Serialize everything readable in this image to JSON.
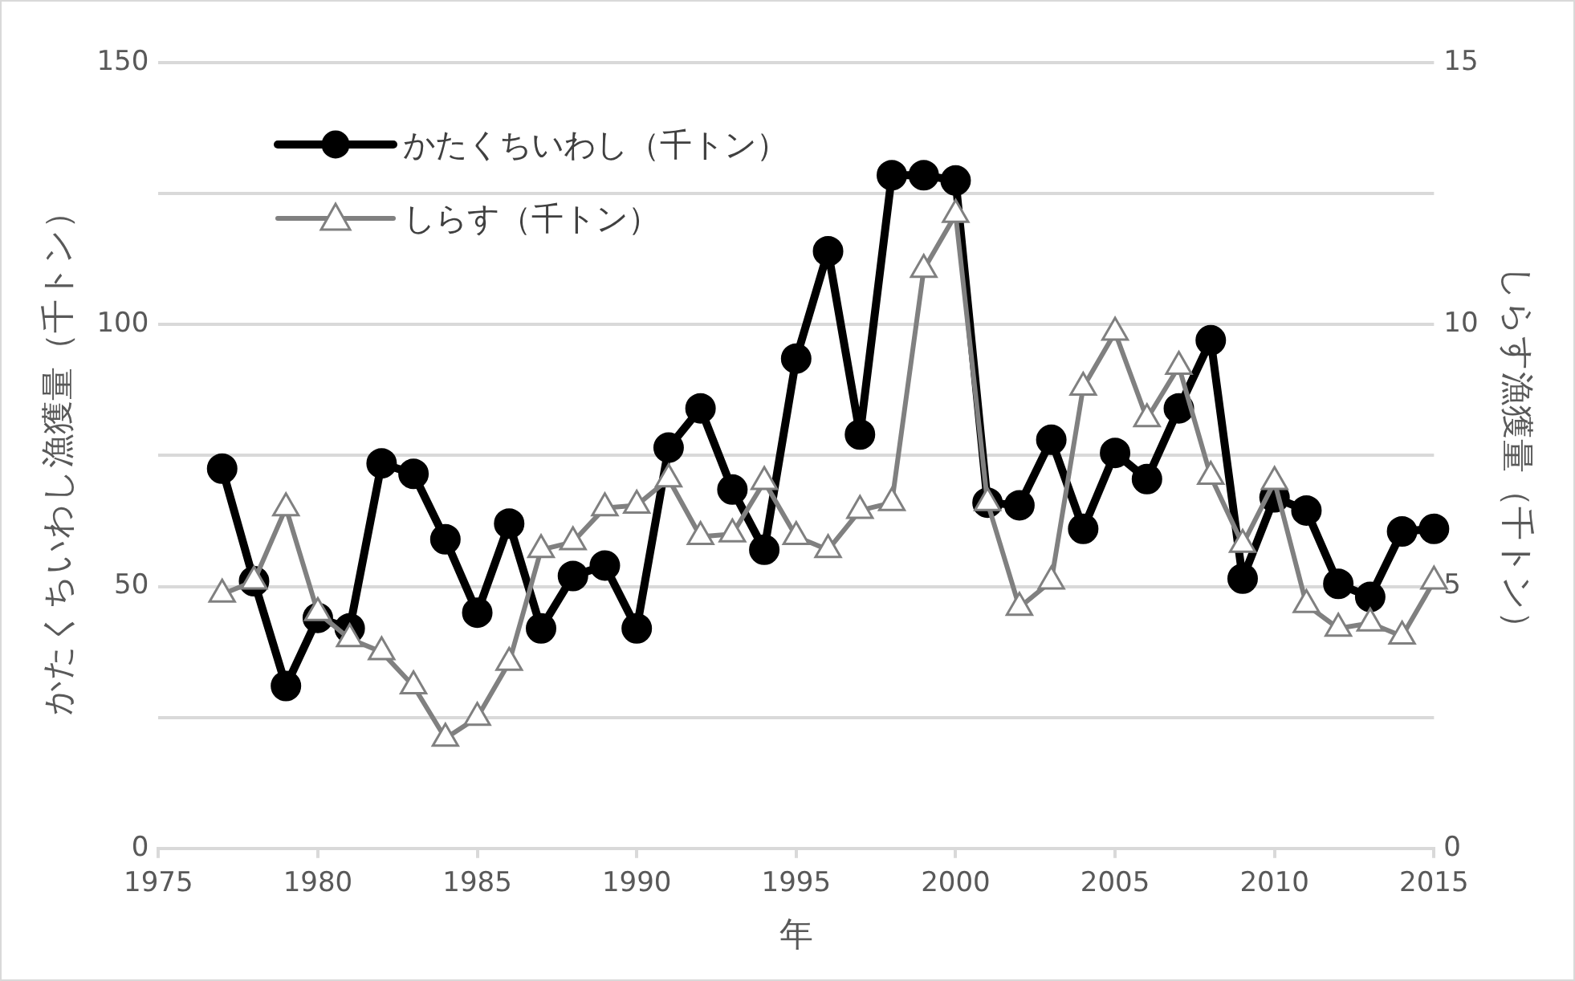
{
  "chart_data": {
    "type": "line",
    "xlabel": "年",
    "ylabel": "かたくちいわし漁獲量（千トン）",
    "y2label": "しらす漁獲量（千トン）",
    "x": [
      1977,
      1978,
      1979,
      1980,
      1981,
      1982,
      1983,
      1984,
      1985,
      1986,
      1987,
      1988,
      1989,
      1990,
      1991,
      1992,
      1993,
      1994,
      1995,
      1996,
      1997,
      1998,
      1999,
      2000,
      2001,
      2002,
      2003,
      2004,
      2005,
      2006,
      2007,
      2008,
      2009,
      2010,
      2011,
      2012,
      2013,
      2014,
      2015
    ],
    "series": [
      {
        "name": "かたくちいわし（千トン）",
        "color": "#000000",
        "marker": "circle",
        "values": [
          72.5,
          51,
          31,
          44,
          42,
          73.5,
          71.5,
          59,
          45,
          62,
          42,
          52,
          54,
          42,
          76.5,
          84,
          68.5,
          57,
          93.5,
          114,
          79,
          128.5,
          128.5,
          127.5,
          66,
          65.5,
          78,
          61,
          75.5,
          70.5,
          84,
          97,
          51.5,
          67,
          64.5,
          50.5,
          48,
          60.5,
          61
        ]
      },
      {
        "name": "しらす（千トン）",
        "color": "#808080",
        "marker": "triangle",
        "axis": "y2",
        "values": [
          4.85,
          5.1,
          6.5,
          4.5,
          4.0,
          3.75,
          3.1,
          2.1,
          2.5,
          3.55,
          5.7,
          5.85,
          6.5,
          6.55,
          7.05,
          5.95,
          6.0,
          7.0,
          5.95,
          5.7,
          6.45,
          6.6,
          11.05,
          12.1,
          6.6,
          4.6,
          5.1,
          8.8,
          9.85,
          8.2,
          9.2,
          7.1,
          5.8,
          7.0,
          4.65,
          4.2,
          4.3,
          4.05,
          5.1
        ]
      }
    ],
    "xlim": [
      1975,
      2015
    ],
    "xticks": [
      1975,
      1980,
      1985,
      1990,
      1995,
      2000,
      2005,
      2010,
      2015
    ],
    "ylim": [
      0,
      150
    ],
    "yticks": [
      0,
      {
        "value": 25,
        "label": null
      },
      50,
      {
        "value": 75,
        "label": null
      },
      100,
      {
        "value": 125,
        "label": null
      },
      150
    ],
    "y2lim": [
      0,
      15
    ],
    "y2ticks": [
      0,
      5,
      10,
      15
    ],
    "grid": "y",
    "legend": "top left",
    "line_style": "solid"
  }
}
